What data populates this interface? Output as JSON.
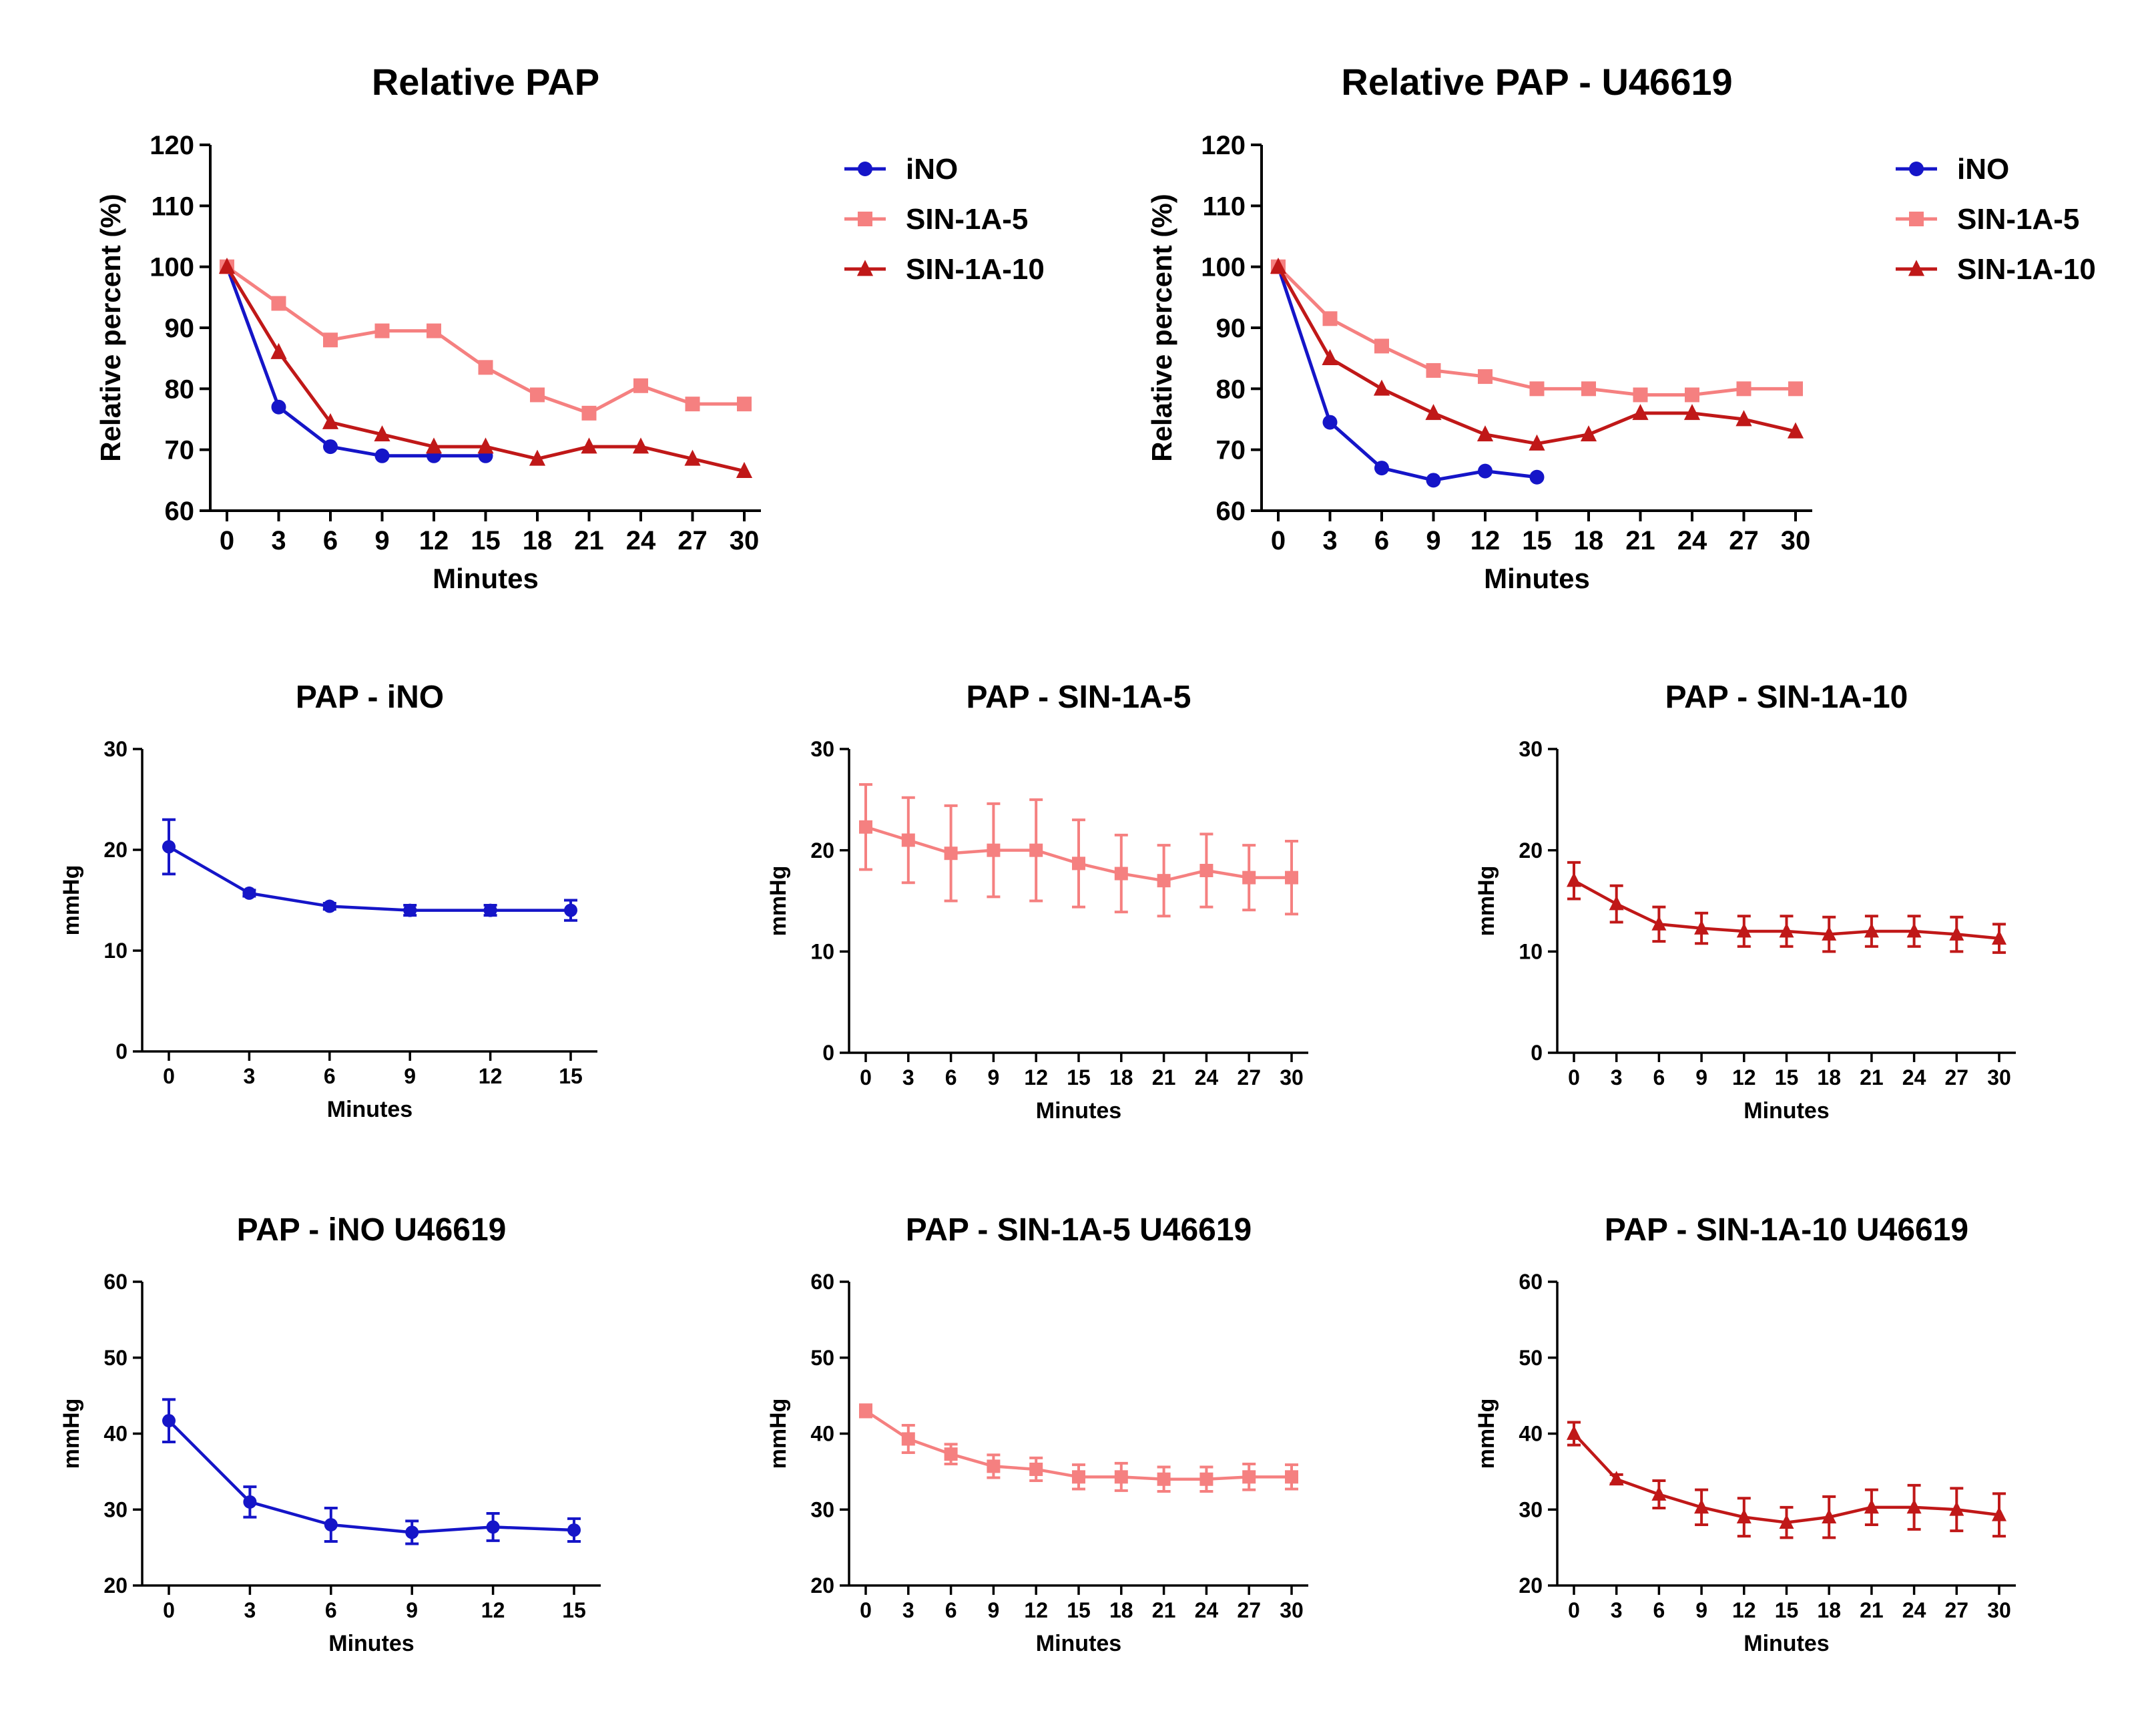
{
  "colors": {
    "ino": "#1515c8",
    "sin5": "#f58080",
    "sin10": "#c01818",
    "axis": "#000000"
  },
  "chart_data": [
    {
      "id": "relative-pap",
      "type": "line",
      "title": "Relative PAP",
      "xlabel": "Minutes",
      "ylabel": "Relative percent (%)",
      "xticks": [
        "0",
        "3",
        "6",
        "9",
        "12",
        "15",
        "18",
        "21",
        "24",
        "27",
        "30"
      ],
      "yticks": [
        "60",
        "70",
        "80",
        "90",
        "100",
        "110",
        "120"
      ],
      "xlim": [
        0,
        30
      ],
      "ylim": [
        60,
        120
      ],
      "legend": "right",
      "series": [
        {
          "name": "iNO",
          "marker": "circle",
          "color": "ino",
          "x": [
            0,
            3,
            6,
            9,
            12,
            15
          ],
          "y": [
            100,
            77,
            70.5,
            69,
            69,
            69
          ]
        },
        {
          "name": "SIN-1A-5",
          "marker": "square",
          "color": "sin5",
          "x": [
            0,
            3,
            6,
            9,
            12,
            15,
            18,
            21,
            24,
            27,
            30
          ],
          "y": [
            100,
            94,
            88,
            89.5,
            89.5,
            83.5,
            79,
            76,
            80.5,
            77.5,
            77.5
          ]
        },
        {
          "name": "SIN-1A-10",
          "marker": "triangle",
          "color": "sin10",
          "x": [
            0,
            3,
            6,
            9,
            12,
            15,
            18,
            21,
            24,
            27,
            30
          ],
          "y": [
            100,
            86,
            74.5,
            72.5,
            70.5,
            70.5,
            68.5,
            70.5,
            70.5,
            68.5,
            66.5
          ]
        }
      ]
    },
    {
      "id": "relative-pap-u46619",
      "type": "line",
      "title": "Relative PAP - U46619",
      "xlabel": "Minutes",
      "ylabel": "Relative percent (%)",
      "xticks": [
        "0",
        "3",
        "6",
        "9",
        "12",
        "15",
        "18",
        "21",
        "24",
        "27",
        "30"
      ],
      "yticks": [
        "60",
        "70",
        "80",
        "90",
        "100",
        "110",
        "120"
      ],
      "xlim": [
        0,
        30
      ],
      "ylim": [
        60,
        120
      ],
      "legend": "right",
      "series": [
        {
          "name": "iNO",
          "marker": "circle",
          "color": "ino",
          "x": [
            0,
            3,
            6,
            9,
            12,
            15
          ],
          "y": [
            100,
            74.5,
            67,
            65,
            66.5,
            65.5
          ]
        },
        {
          "name": "SIN-1A-5",
          "marker": "square",
          "color": "sin5",
          "x": [
            0,
            3,
            6,
            9,
            12,
            15,
            18,
            21,
            24,
            27,
            30
          ],
          "y": [
            100,
            91.5,
            87,
            83,
            82,
            80,
            80,
            79,
            79,
            80,
            80
          ]
        },
        {
          "name": "SIN-1A-10",
          "marker": "triangle",
          "color": "sin10",
          "x": [
            0,
            3,
            6,
            9,
            12,
            15,
            18,
            21,
            24,
            27,
            30
          ],
          "y": [
            100,
            85,
            80,
            76,
            72.5,
            71,
            72.5,
            76,
            76,
            75,
            73
          ]
        }
      ]
    },
    {
      "id": "pap-ino",
      "type": "line",
      "title": "PAP - iNO",
      "xlabel": "Minutes",
      "ylabel": "mmHg",
      "xticks": [
        "0",
        "3",
        "6",
        "9",
        "12",
        "15"
      ],
      "yticks": [
        "0",
        "10",
        "20",
        "30"
      ],
      "xlim": [
        0,
        15
      ],
      "ylim": [
        0,
        30
      ],
      "series": [
        {
          "name": "iNO",
          "marker": "circle",
          "color": "ino",
          "x": [
            0,
            3,
            6,
            9,
            12,
            15
          ],
          "y": [
            20.3,
            15.7,
            14.4,
            14,
            14,
            14
          ],
          "err": [
            2.7,
            0.3,
            0.3,
            0.5,
            0.5,
            1
          ]
        }
      ]
    },
    {
      "id": "pap-sin-1a-5",
      "type": "line",
      "title": "PAP - SIN-1A-5",
      "xlabel": "Minutes",
      "ylabel": "mmHg",
      "xticks": [
        "0",
        "3",
        "6",
        "9",
        "12",
        "15",
        "18",
        "21",
        "24",
        "27",
        "30"
      ],
      "yticks": [
        "0",
        "10",
        "20",
        "30"
      ],
      "xlim": [
        0,
        30
      ],
      "ylim": [
        0,
        30
      ],
      "series": [
        {
          "name": "SIN-1A-5",
          "marker": "square",
          "color": "sin5",
          "x": [
            0,
            3,
            6,
            9,
            12,
            15,
            18,
            21,
            24,
            27,
            30
          ],
          "y": [
            22.3,
            21,
            19.7,
            20,
            20,
            18.7,
            17.7,
            17,
            18,
            17.3,
            17.3
          ],
          "err": [
            4.2,
            4.2,
            4.7,
            4.6,
            5,
            4.3,
            3.8,
            3.5,
            3.6,
            3.2,
            3.6
          ]
        }
      ]
    },
    {
      "id": "pap-sin-1a-10",
      "type": "line",
      "title": "PAP - SIN-1A-10",
      "xlabel": "Minutes",
      "ylabel": "mmHg",
      "xticks": [
        "0",
        "3",
        "6",
        "9",
        "12",
        "15",
        "18",
        "21",
        "24",
        "27",
        "30"
      ],
      "yticks": [
        "0",
        "10",
        "20",
        "30"
      ],
      "xlim": [
        0,
        30
      ],
      "ylim": [
        0,
        30
      ],
      "series": [
        {
          "name": "SIN-1A-10",
          "marker": "triangle",
          "color": "sin10",
          "x": [
            0,
            3,
            6,
            9,
            12,
            15,
            18,
            21,
            24,
            27,
            30
          ],
          "y": [
            17,
            14.7,
            12.7,
            12.3,
            12,
            12,
            11.7,
            12,
            12,
            11.7,
            11.3
          ],
          "err": [
            1.8,
            1.8,
            1.7,
            1.5,
            1.5,
            1.5,
            1.7,
            1.5,
            1.5,
            1.7,
            1.4
          ]
        }
      ]
    },
    {
      "id": "pap-ino-u46619",
      "type": "line",
      "title": "PAP - iNO U46619",
      "xlabel": "Minutes",
      "ylabel": "mmHg",
      "xticks": [
        "0",
        "3",
        "6",
        "9",
        "12",
        "15"
      ],
      "yticks": [
        "20",
        "30",
        "40",
        "50",
        "60"
      ],
      "xlim": [
        0,
        15
      ],
      "ylim": [
        20,
        60
      ],
      "series": [
        {
          "name": "iNO",
          "marker": "circle",
          "color": "ino",
          "x": [
            0,
            3,
            6,
            9,
            12,
            15
          ],
          "y": [
            41.7,
            31,
            28,
            27,
            27.7,
            27.3
          ],
          "err": [
            2.8,
            2,
            2.2,
            1.5,
            1.8,
            1.5
          ]
        }
      ]
    },
    {
      "id": "pap-sin-1a-5-u46619",
      "type": "line",
      "title": "PAP - SIN-1A-5 U46619",
      "xlabel": "Minutes",
      "ylabel": "mmHg",
      "xticks": [
        "0",
        "3",
        "6",
        "9",
        "12",
        "15",
        "18",
        "21",
        "24",
        "27",
        "30"
      ],
      "yticks": [
        "20",
        "30",
        "40",
        "50",
        "60"
      ],
      "xlim": [
        0,
        30
      ],
      "ylim": [
        20,
        60
      ],
      "series": [
        {
          "name": "SIN-1A-5",
          "marker": "square",
          "color": "sin5",
          "x": [
            0,
            3,
            6,
            9,
            12,
            15,
            18,
            21,
            24,
            27,
            30
          ],
          "y": [
            43,
            39.3,
            37.3,
            35.7,
            35.3,
            34.3,
            34.3,
            34,
            34,
            34.3,
            34.3
          ],
          "err": [
            0.8,
            1.8,
            1.3,
            1.5,
            1.5,
            1.6,
            1.8,
            1.6,
            1.6,
            1.7,
            1.6
          ]
        }
      ]
    },
    {
      "id": "pap-sin-1a-10-u46619",
      "type": "line",
      "title": "PAP - SIN-1A-10 U46619",
      "xlabel": "Minutes",
      "ylabel": "mmHg",
      "xticks": [
        "0",
        "3",
        "6",
        "9",
        "12",
        "15",
        "18",
        "21",
        "24",
        "27",
        "30"
      ],
      "yticks": [
        "20",
        "30",
        "40",
        "50",
        "60"
      ],
      "xlim": [
        0,
        30
      ],
      "ylim": [
        20,
        60
      ],
      "series": [
        {
          "name": "SIN-1A-10",
          "marker": "triangle",
          "color": "sin10",
          "x": [
            0,
            3,
            6,
            9,
            12,
            15,
            18,
            21,
            24,
            27,
            30
          ],
          "y": [
            40,
            34,
            32,
            30.3,
            29,
            28.3,
            29,
            30.3,
            30.3,
            30,
            29.3
          ],
          "err": [
            1.5,
            0.6,
            1.8,
            2.3,
            2.5,
            2,
            2.7,
            2.3,
            2.9,
            2.8,
            2.8
          ]
        }
      ]
    }
  ]
}
